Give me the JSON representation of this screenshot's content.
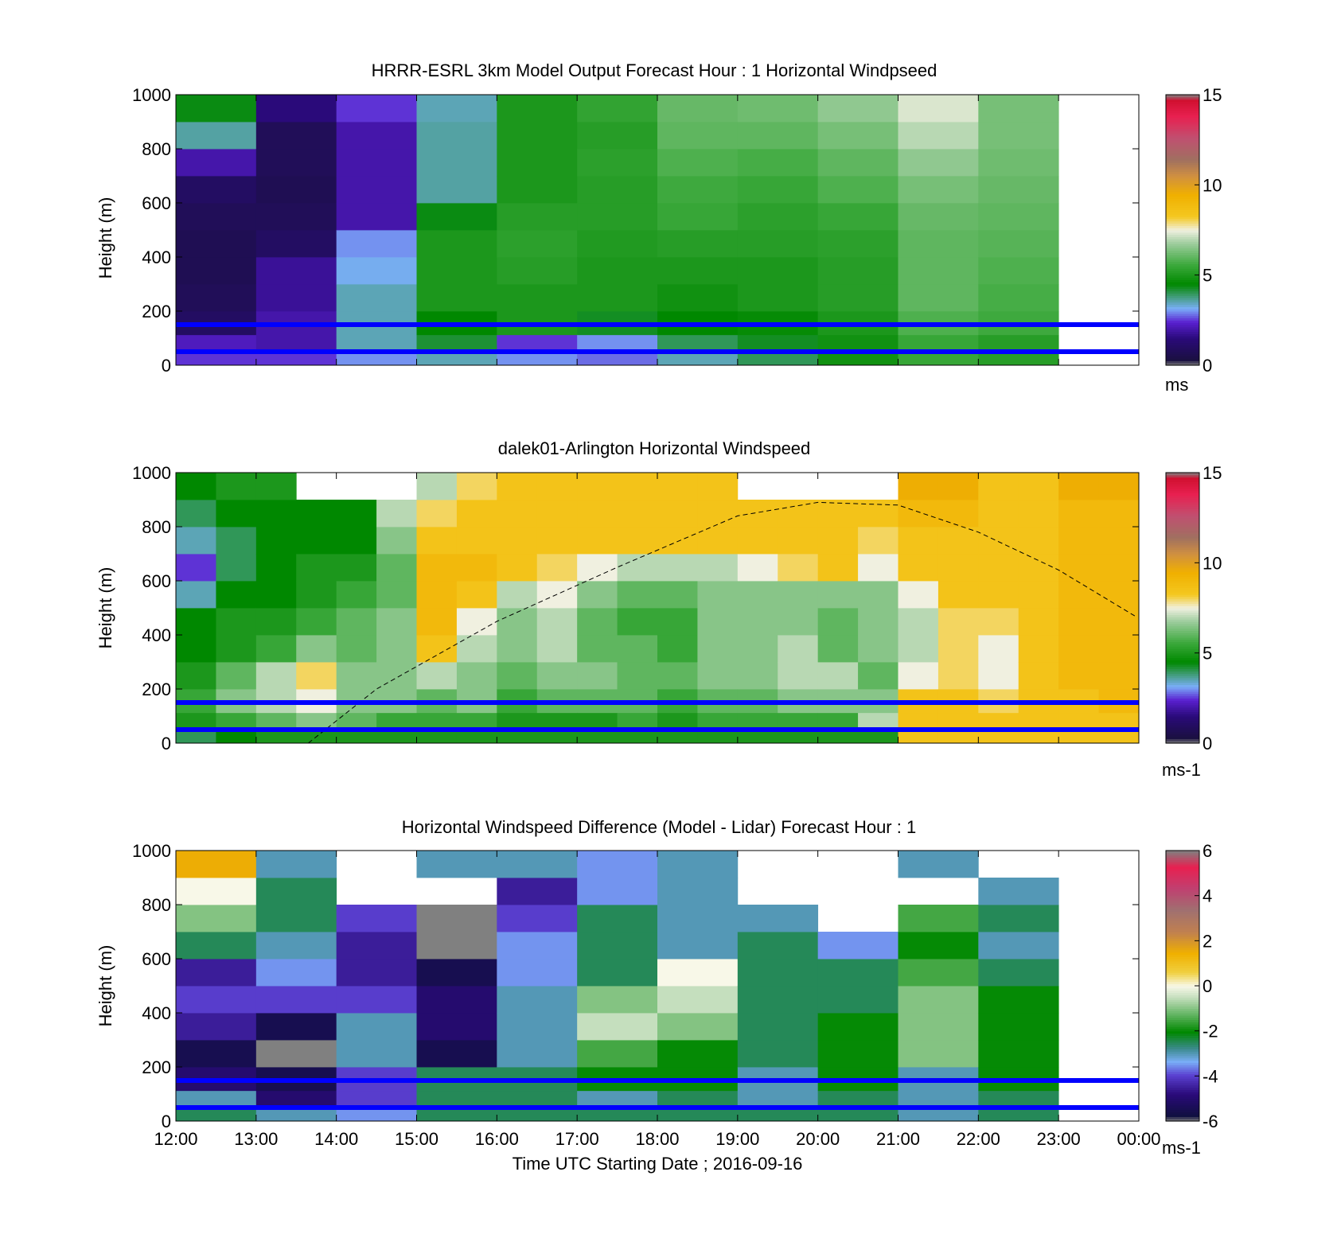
{
  "figure": {
    "xlabel": "Time UTC  Starting Date ; 2016-09-16",
    "time_ticks": [
      "12:00",
      "13:00",
      "14:00",
      "15:00",
      "16:00",
      "17:00",
      "18:00",
      "19:00",
      "20:00",
      "21:00",
      "22:00",
      "23:00",
      "00:00"
    ],
    "reference_lines_m": [
      150,
      50
    ],
    "reference_line_color": "#0000ff"
  },
  "chart_data": [
    {
      "type": "heatmap",
      "title": "HRRR-ESRL 3km Model Output   Forecast Hour : 1 Horizontal Windpseed",
      "ylabel": "Height (m)",
      "ylim": [
        0,
        1000
      ],
      "y_ticks": [
        "0",
        "200",
        "400",
        "600",
        "800",
        "1000"
      ],
      "colorbar": {
        "min": 0,
        "max": 15,
        "ticks": [
          "0",
          "5",
          "10",
          "15"
        ],
        "unit": "ms"
      },
      "x": [
        "12:00",
        "13:00",
        "14:00",
        "15:00",
        "16:00",
        "17:00",
        "18:00",
        "19:00",
        "20:00",
        "21:00",
        "22:00"
      ],
      "heights_m": [
        25,
        75,
        150,
        250,
        350,
        450,
        550,
        650,
        750,
        850,
        950
      ],
      "values": [
        [
          2.5,
          2.5,
          3.0,
          3.5,
          3.0,
          2.8,
          3.5,
          4.0,
          4.8,
          5.5,
          5.2
        ],
        [
          2.2,
          2.0,
          3.5,
          4.2,
          2.5,
          3.0,
          4.0,
          4.3,
          4.8,
          5.5,
          5.2
        ],
        [
          1.0,
          2.0,
          3.5,
          4.5,
          5.0,
          4.3,
          4.5,
          4.6,
          5.0,
          5.8,
          5.6
        ],
        [
          0.8,
          1.8,
          3.5,
          5.0,
          5.0,
          5.0,
          4.8,
          5.0,
          5.2,
          6.0,
          5.7
        ],
        [
          0.7,
          1.8,
          3.2,
          5.0,
          5.2,
          5.0,
          5.0,
          5.0,
          5.2,
          6.0,
          5.8
        ],
        [
          0.7,
          1.0,
          3.0,
          5.0,
          5.3,
          5.1,
          5.2,
          5.2,
          5.3,
          6.0,
          5.9
        ],
        [
          0.8,
          0.8,
          2.0,
          4.4,
          5.2,
          5.2,
          5.5,
          5.3,
          5.5,
          6.1,
          6.0
        ],
        [
          1.0,
          0.7,
          2.0,
          3.6,
          5.0,
          5.2,
          5.6,
          5.5,
          5.8,
          6.3,
          6.1
        ],
        [
          2.0,
          0.8,
          2.0,
          3.6,
          5.0,
          5.3,
          5.8,
          5.7,
          6.0,
          6.6,
          6.2
        ],
        [
          3.6,
          0.8,
          2.0,
          3.6,
          5.0,
          5.2,
          6.0,
          6.0,
          6.3,
          7.0,
          6.3
        ],
        [
          4.4,
          1.5,
          2.5,
          3.5,
          5.0,
          5.4,
          6.1,
          6.2,
          6.6,
          7.3,
          6.3
        ]
      ]
    },
    {
      "type": "heatmap",
      "title": "dalek01-Arlington  Horizontal Windspeed",
      "ylabel": "Height (m)",
      "ylim": [
        0,
        1000
      ],
      "y_ticks": [
        "0",
        "200",
        "400",
        "600",
        "800",
        "1000"
      ],
      "colorbar": {
        "min": 0,
        "max": 15,
        "ticks": [
          "0",
          "5",
          "10",
          "15"
        ],
        "unit": "ms-1"
      },
      "x": [
        "12:00",
        "12:30",
        "13:00",
        "13:30",
        "14:00",
        "14:30",
        "15:00",
        "15:30",
        "16:00",
        "16:30",
        "17:00",
        "17:30",
        "18:00",
        "18:30",
        "19:00",
        "19:30",
        "20:00",
        "20:30",
        "21:00",
        "21:30",
        "22:00",
        "22:30",
        "23:00",
        "23:30"
      ],
      "heights_m": [
        25,
        75,
        150,
        250,
        350,
        450,
        550,
        650,
        750,
        850,
        950
      ],
      "values": [
        [
          4.0,
          4.5,
          5.0,
          5.0,
          5.0,
          5.0,
          5.0,
          5.0,
          5.0,
          5.0,
          5.0,
          5.0,
          5.0,
          5.0,
          5.0,
          5.0,
          5.0,
          5.0,
          8.5,
          8.5,
          8.5,
          8.5,
          8.5,
          8.5
        ],
        [
          5.0,
          5.5,
          6.0,
          6.5,
          6.0,
          5.5,
          5.5,
          5.5,
          5.0,
          5.0,
          5.0,
          5.5,
          5.0,
          5.5,
          5.5,
          5.5,
          5.5,
          7.0,
          8.5,
          8.5,
          8.5,
          8.5,
          8.5,
          8.5
        ],
        [
          5.5,
          6.5,
          7.0,
          7.5,
          6.5,
          6.5,
          6.0,
          6.5,
          5.5,
          6.0,
          6.0,
          6.0,
          5.5,
          6.0,
          6.0,
          6.5,
          6.5,
          6.5,
          8.5,
          8.5,
          8.0,
          8.5,
          8.5,
          9.0
        ],
        [
          5.0,
          6.0,
          7.0,
          8.0,
          6.5,
          6.5,
          7.0,
          6.5,
          6.0,
          6.5,
          6.5,
          6.0,
          6.0,
          6.5,
          6.5,
          7.0,
          7.0,
          6.0,
          7.5,
          8.0,
          7.5,
          8.5,
          9.0,
          9.0
        ],
        [
          4.5,
          5.0,
          5.5,
          6.5,
          6.0,
          6.5,
          8.5,
          7.0,
          6.5,
          7.0,
          6.0,
          6.0,
          5.5,
          6.5,
          6.5,
          7.0,
          6.0,
          6.5,
          7.0,
          8.0,
          7.5,
          8.5,
          9.0,
          9.0
        ],
        [
          4.5,
          5.0,
          5.0,
          5.5,
          6.0,
          6.5,
          9.0,
          7.5,
          6.5,
          7.0,
          6.0,
          5.5,
          5.5,
          6.5,
          6.5,
          6.5,
          6.0,
          6.5,
          7.0,
          8.0,
          8.0,
          8.5,
          9.0,
          9.0
        ],
        [
          3.5,
          4.5,
          4.5,
          5.0,
          5.5,
          6.0,
          9.0,
          8.5,
          7.0,
          7.5,
          6.5,
          6.0,
          6.0,
          6.5,
          6.5,
          6.5,
          6.5,
          6.5,
          7.5,
          8.5,
          8.5,
          8.5,
          9.0,
          9.0
        ],
        [
          2.5,
          4.0,
          4.5,
          5.0,
          5.0,
          6.0,
          9.0,
          9.0,
          8.5,
          8.0,
          7.5,
          7.0,
          7.0,
          7.0,
          7.5,
          8.0,
          8.5,
          7.5,
          8.5,
          8.5,
          8.5,
          8.5,
          9.0,
          9.0
        ],
        [
          3.5,
          4.0,
          4.5,
          4.5,
          4.5,
          6.5,
          8.5,
          8.5,
          8.5,
          8.5,
          8.5,
          8.5,
          8.5,
          8.5,
          8.5,
          8.5,
          8.5,
          8.0,
          8.5,
          8.5,
          8.5,
          8.5,
          9.0,
          9.0
        ],
        [
          4.0,
          4.5,
          4.5,
          4.5,
          4.5,
          7.0,
          8.0,
          8.5,
          8.5,
          8.5,
          8.5,
          8.5,
          8.5,
          8.5,
          8.5,
          8.5,
          8.5,
          8.5,
          9.0,
          9.0,
          8.5,
          8.5,
          9.0,
          9.0
        ],
        [
          4.5,
          5.0,
          5.0,
          null,
          null,
          null,
          7.0,
          8.0,
          8.5,
          8.5,
          8.5,
          8.5,
          8.5,
          8.5,
          null,
          null,
          null,
          null,
          9.5,
          9.5,
          8.5,
          8.5,
          9.5,
          9.5
        ]
      ],
      "overlay_curve": {
        "style": "dashed",
        "x_hours": [
          13.65,
          14.5,
          16.0,
          17.5,
          19.0,
          20.0,
          21.0,
          22.0,
          23.0,
          23.95
        ],
        "y_m": [
          0,
          200,
          450,
          650,
          840,
          890,
          880,
          780,
          640,
          470
        ]
      }
    },
    {
      "type": "heatmap",
      "title": "Horizontal Windspeed Difference (Model - Lidar) Forecast Hour : 1",
      "ylabel": "Height (m)",
      "ylim": [
        0,
        1000
      ],
      "y_ticks": [
        "0",
        "200",
        "400",
        "600",
        "800",
        "1000"
      ],
      "colorbar": {
        "min": -6,
        "max": 6,
        "ticks": [
          "-6",
          "-4",
          "-2",
          "0",
          "2",
          "4",
          "6"
        ],
        "unit": "ms-1"
      },
      "x": [
        "12:00",
        "13:00",
        "14:00",
        "15:00",
        "16:00",
        "17:00",
        "18:00",
        "19:00",
        "20:00",
        "21:00",
        "22:00"
      ],
      "heights_m": [
        25,
        75,
        150,
        250,
        350,
        450,
        550,
        650,
        750,
        850,
        950
      ],
      "values": [
        [
          -2.5,
          -3.0,
          -3.5,
          -2.5,
          -2.5,
          -2.5,
          -2.5,
          -2.5,
          -2.5,
          -3.0,
          -2.5
        ],
        [
          -3.0,
          -5.0,
          -4.0,
          -2.5,
          -2.5,
          -3.0,
          -2.5,
          -3.0,
          -2.5,
          -3.0,
          -2.5
        ],
        [
          -5.0,
          -5.5,
          -4.0,
          -2.5,
          -2.5,
          -2.0,
          -2.0,
          -3.0,
          -2.0,
          -3.0,
          -2.0
        ],
        [
          -5.5,
          -6.0,
          -3.0,
          -5.5,
          -3.0,
          -1.5,
          -2.0,
          -2.5,
          -2.0,
          -1.0,
          -2.0
        ],
        [
          -4.5,
          -5.5,
          -3.0,
          -5.0,
          -3.0,
          -0.5,
          -1.0,
          -2.5,
          -2.0,
          -1.0,
          -2.0
        ],
        [
          -4.0,
          -4.0,
          -4.0,
          -5.0,
          -3.0,
          -1.0,
          -0.5,
          -2.5,
          -2.5,
          -1.0,
          -2.0
        ],
        [
          -4.5,
          -3.5,
          -4.5,
          -5.5,
          -3.5,
          -2.5,
          0.0,
          -2.5,
          -2.5,
          -1.5,
          -2.5
        ],
        [
          -2.5,
          -3.0,
          -4.5,
          -6.0,
          -3.5,
          -2.5,
          -3.0,
          -2.5,
          -3.5,
          -2.0,
          -3.0
        ],
        [
          -1.0,
          -2.5,
          -4.0,
          -6.0,
          -4.0,
          -2.5,
          -3.0,
          -3.0,
          null,
          -1.5,
          -2.5
        ],
        [
          0.0,
          -2.5,
          null,
          null,
          -4.5,
          -3.5,
          -3.0,
          null,
          null,
          null,
          -3.0
        ],
        [
          1.5,
          -3.0,
          null,
          -3.0,
          -3.0,
          -3.5,
          -3.0,
          null,
          null,
          -3.0,
          null
        ]
      ]
    }
  ]
}
